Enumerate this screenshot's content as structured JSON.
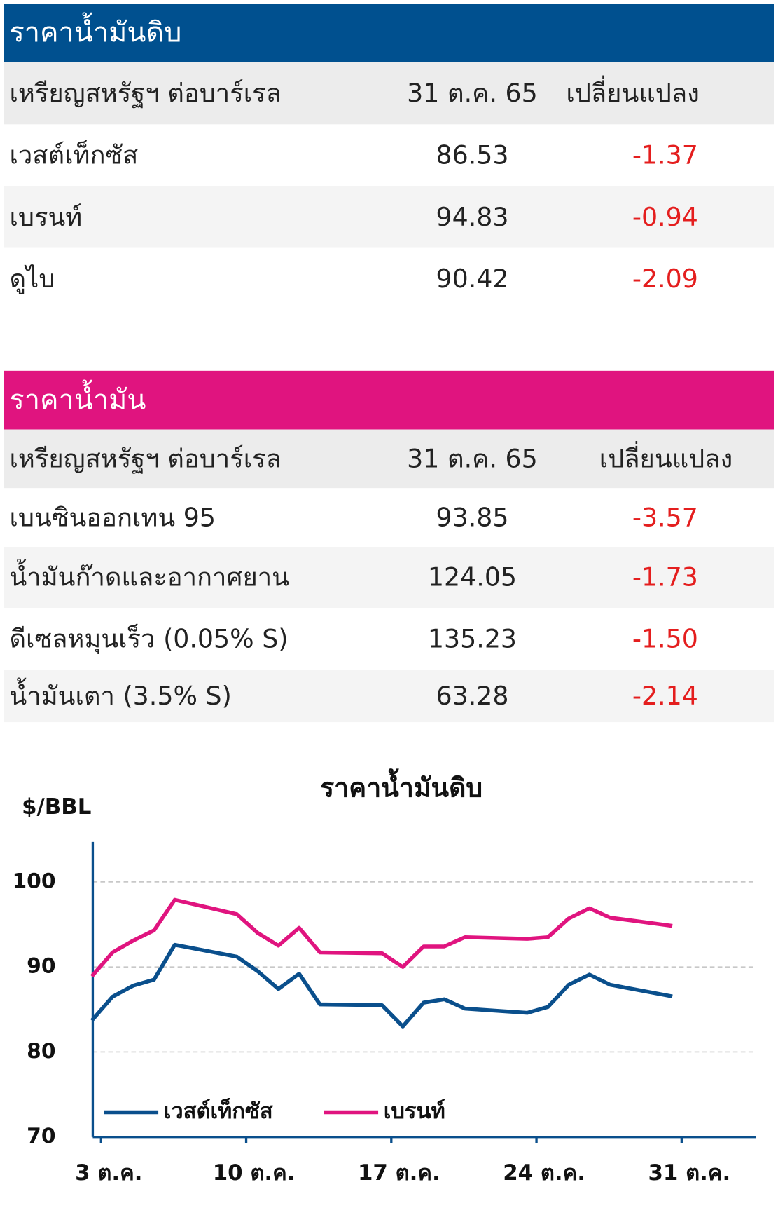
{
  "sections": [
    {
      "title": "ราคาน้ำมันดิบ",
      "header": [
        "เหรียญสหรัฐฯ ต่อบาร์เรล",
        "31 ต.ค. 65",
        "เปลี่ยนแปลง"
      ],
      "rows": [
        [
          "เวสต์เท็กซัส",
          "86.53",
          "-1.37"
        ],
        [
          "เบรนท์",
          "94.83",
          "-0.94"
        ],
        [
          "ดูไบ",
          "90.42",
          "-2.09"
        ]
      ]
    },
    {
      "title": "ราคาน้ำมัน",
      "header": [
        "เหรียญสหรัฐฯ ต่อบาร์เรล",
        "31 ต.ค. 65",
        "เปลี่ยนแปลง"
      ],
      "rows": [
        [
          "เบนซินออกเทน 95",
          "93.85",
          "-3.57"
        ],
        [
          "น้ำมันก๊าดและอากาศยาน",
          "124.05",
          "-1.73"
        ],
        [
          "ดีเซลหมุนเร็ว (0.05% S)",
          "135.23",
          "-1.50"
        ],
        [
          "น้ำมันเตา (3.5% S)",
          "63.28",
          "-2.14"
        ]
      ]
    }
  ],
  "chart_data": {
    "type": "line",
    "title": "ราคาน้ำมันดิบ",
    "y_label": "$/BBL",
    "x": [
      3,
      4,
      5,
      6,
      7,
      10,
      11,
      12,
      13,
      14,
      17,
      18,
      19,
      20,
      21,
      24,
      25,
      26,
      27,
      28,
      31
    ],
    "series": [
      {
        "name": "เวสต์เท็กซัส",
        "color": "#0a4f8c",
        "values": [
          83.7,
          86.5,
          87.8,
          88.5,
          92.6,
          91.2,
          89.5,
          87.4,
          89.2,
          85.6,
          85.5,
          83.0,
          85.8,
          86.2,
          85.1,
          84.6,
          85.3,
          87.9,
          89.1,
          87.9,
          86.53
        ]
      },
      {
        "name": "เบรนท์",
        "color": "#e0147f",
        "values": [
          88.9,
          91.7,
          93.1,
          94.3,
          97.9,
          96.2,
          94.0,
          92.5,
          94.6,
          91.7,
          91.6,
          90.0,
          92.4,
          92.4,
          93.5,
          93.3,
          93.5,
          95.7,
          96.9,
          95.8,
          94.83
        ]
      }
    ],
    "xlim": [
      2.6,
      34.6
    ],
    "xticks": [
      {
        "value": 3,
        "label": "3 ต.ค."
      },
      {
        "value": 10,
        "label": "10 ต.ค."
      },
      {
        "value": 17,
        "label": "17 ต.ค."
      },
      {
        "value": 24,
        "label": "24 ต.ค."
      },
      {
        "value": 31,
        "label": "31 ต.ค."
      }
    ],
    "ylim": [
      70,
      104.7
    ],
    "yticks": [
      70,
      80,
      90,
      100
    ],
    "grid": true
  }
}
